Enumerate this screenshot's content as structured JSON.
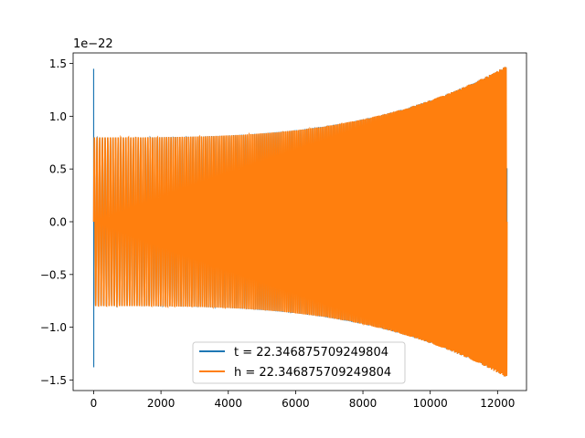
{
  "chart_data": {
    "type": "line",
    "title": "",
    "xlabel": "",
    "ylabel": "",
    "xlim": [
      -610,
      12860
    ],
    "ylim": [
      -1.6,
      1.6
    ],
    "x_ticks": [
      0,
      2000,
      4000,
      6000,
      8000,
      10000,
      12000
    ],
    "x_tick_labels": [
      "0",
      "2000",
      "4000",
      "6000",
      "8000",
      "10000",
      "12000"
    ],
    "y_ticks": [
      1.5,
      1.0,
      0.5,
      0.0,
      -0.5,
      -1.0,
      -1.5
    ],
    "y_tick_labels": [
      "1.5",
      "1.0",
      "0.5",
      "0.0",
      "−0.5",
      "−1.0",
      "−1.5"
    ],
    "y_offset_label": "1e−22",
    "grid": false,
    "legend_position": "lower-center",
    "series": [
      {
        "name": "t = 22.346875709249804",
        "color": "#1f77b4",
        "x_range": [
          0,
          12280
        ],
        "spike_at_start": {
          "max": 1.45,
          "min": -1.38
        },
        "amplitude_start": 0.8,
        "amplitude_end": 1.48,
        "cycles": 240
      },
      {
        "name": "h = 22.346875709249804",
        "color": "#ff7f0e",
        "x_range": [
          0,
          12280
        ],
        "amplitude_start": 0.8,
        "amplitude_end": 1.48,
        "cycles": 240
      }
    ]
  }
}
